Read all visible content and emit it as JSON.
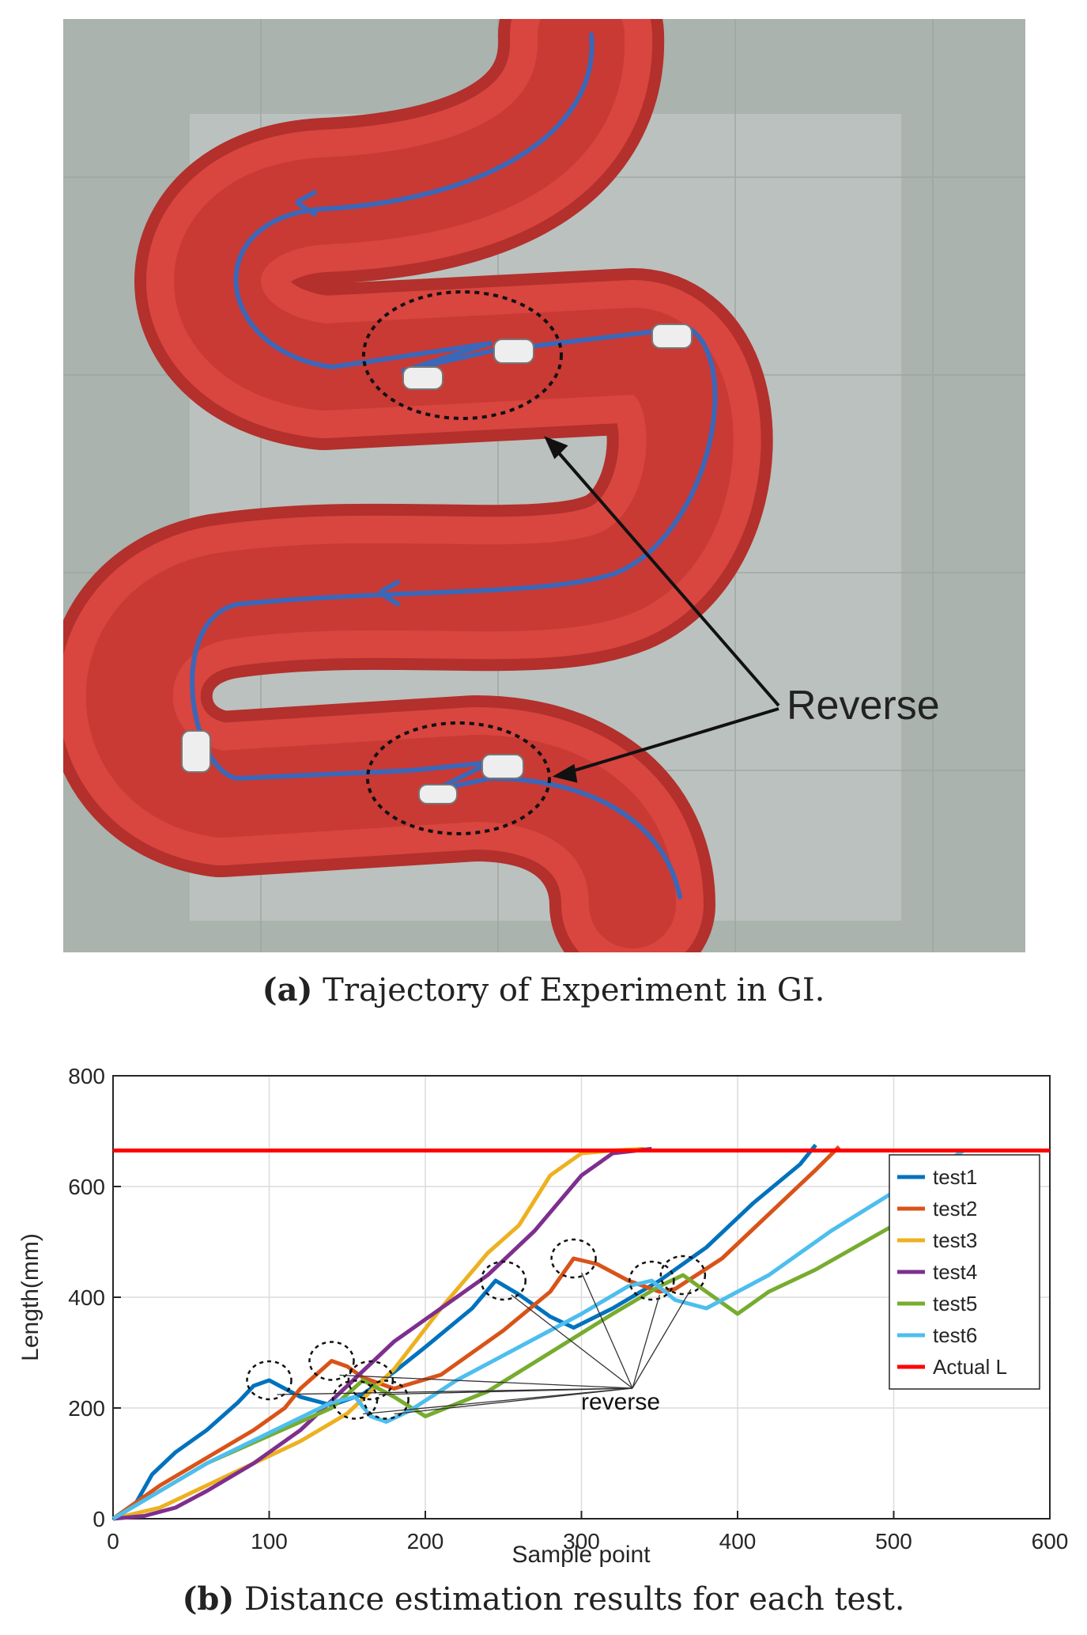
{
  "figure_a": {
    "label": "(a)",
    "caption": "Trajectory of Experiment in GI.",
    "annotation": "Reverse"
  },
  "figure_b": {
    "label": "(b)",
    "caption": "Distance estimation results for each test."
  },
  "colors": {
    "tissue": "#d9453f",
    "tissue_dark": "#b3302c",
    "background": "#aab3ae",
    "trajectory": "#3b67b8"
  },
  "chart_data": {
    "type": "line",
    "xlabel": "Sample point",
    "ylabel": "Length(mm)",
    "xlim": [
      0,
      600
    ],
    "ylim": [
      0,
      800
    ],
    "xticks": [
      0,
      100,
      200,
      300,
      400,
      500,
      600
    ],
    "yticks": [
      0,
      200,
      400,
      600,
      800
    ],
    "grid": true,
    "legend_position": "right",
    "annotation": "reverse",
    "series": [
      {
        "name": "test1",
        "color": "#0072BD",
        "x": [
          0,
          15,
          25,
          40,
          60,
          80,
          90,
          100,
          110,
          120,
          140,
          160,
          180,
          200,
          230,
          245,
          260,
          280,
          295,
          320,
          350,
          380,
          410,
          440,
          450
        ],
        "y": [
          0,
          30,
          80,
          120,
          160,
          210,
          240,
          250,
          235,
          220,
          205,
          225,
          265,
          310,
          380,
          430,
          405,
          365,
          345,
          380,
          430,
          490,
          570,
          640,
          675
        ]
      },
      {
        "name": "test2",
        "color": "#D95319",
        "x": [
          0,
          30,
          60,
          90,
          110,
          120,
          140,
          150,
          160,
          180,
          210,
          250,
          280,
          295,
          310,
          330,
          350,
          360,
          390,
          420,
          450,
          465
        ],
        "y": [
          0,
          60,
          110,
          160,
          200,
          235,
          285,
          275,
          255,
          235,
          260,
          340,
          410,
          470,
          460,
          430,
          410,
          415,
          470,
          550,
          630,
          672
        ]
      },
      {
        "name": "test3",
        "color": "#EDB120",
        "x": [
          0,
          30,
          60,
          90,
          120,
          150,
          180,
          210,
          240,
          260,
          280,
          300,
          320,
          340
        ],
        "y": [
          0,
          20,
          60,
          100,
          140,
          190,
          270,
          380,
          480,
          530,
          620,
          660,
          665,
          668
        ]
      },
      {
        "name": "test4",
        "color": "#7E2F8E",
        "x": [
          0,
          20,
          40,
          60,
          90,
          120,
          150,
          180,
          210,
          240,
          270,
          300,
          320,
          345
        ],
        "y": [
          0,
          5,
          20,
          50,
          100,
          160,
          240,
          320,
          380,
          440,
          520,
          620,
          660,
          668
        ]
      },
      {
        "name": "test5",
        "color": "#77AC30",
        "x": [
          0,
          30,
          60,
          100,
          140,
          160,
          180,
          200,
          240,
          280,
          320,
          350,
          365,
          380,
          400,
          420,
          450,
          500,
          540,
          563
        ],
        "y": [
          0,
          50,
          100,
          150,
          200,
          250,
          220,
          185,
          230,
          300,
          370,
          420,
          440,
          410,
          370,
          410,
          450,
          530,
          600,
          655
        ]
      },
      {
        "name": "test6",
        "color": "#4DBEEE",
        "x": [
          0,
          30,
          60,
          100,
          140,
          155,
          165,
          175,
          190,
          220,
          260,
          300,
          330,
          345,
          360,
          380,
          420,
          460,
          500,
          545
        ],
        "y": [
          0,
          50,
          100,
          155,
          210,
          220,
          185,
          175,
          195,
          250,
          310,
          370,
          420,
          430,
          395,
          380,
          440,
          520,
          590,
          665
        ]
      },
      {
        "name": "Actual L",
        "color": "#FF0000",
        "x": [
          0,
          600
        ],
        "y": [
          665,
          665
        ]
      }
    ]
  }
}
